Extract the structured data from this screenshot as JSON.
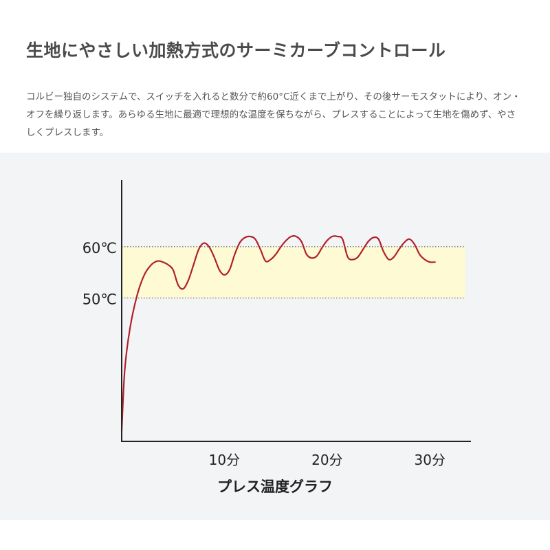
{
  "header": {
    "title": "生地にやさしい加熱方式のサーミカーブコントロール"
  },
  "description": {
    "text": "コルビー独自のシステムで、スイッチを入れると数分で約60°C近くまで上がり、その後サーモスタットにより、オン・オフを繰り返します。あらゆる生地に最適で理想的な温度を保ちながら、プレスすることによって生地を傷めず、やさしくプレスします。"
  },
  "chart_data": {
    "type": "line",
    "title": "プレス温度グラフ",
    "xlabel": "",
    "ylabel": "",
    "x_ticks": [
      {
        "value": 10,
        "label": "10分"
      },
      {
        "value": 20,
        "label": "20分"
      },
      {
        "value": 30,
        "label": "30分"
      }
    ],
    "y_ticks": [
      {
        "value": 60,
        "label": "60℃"
      },
      {
        "value": 50,
        "label": "50℃"
      }
    ],
    "xlim": [
      0,
      34
    ],
    "ylim": [
      22,
      73
    ],
    "band": {
      "from": 50,
      "to": 60,
      "color": "#fdfad4"
    },
    "grid": false,
    "series": [
      {
        "color": "#b0202a",
        "x": [
          0,
          0.3,
          0.8,
          1.5,
          2.2,
          2.9,
          3.5,
          4.0,
          4.5,
          5.0,
          5.5,
          6.0,
          6.5,
          7.0,
          7.5,
          8.0,
          8.5,
          9.0,
          9.5,
          10.0,
          10.5,
          11.0,
          11.5,
          12.0,
          12.5,
          13.0,
          13.5,
          14.0,
          14.5,
          15.0,
          15.5,
          16.0,
          16.5,
          17.0,
          17.5,
          18.0,
          18.5,
          19.0,
          19.5,
          20.0,
          20.5,
          21.0,
          21.5,
          22.0,
          22.5,
          23.0,
          23.5,
          24.0,
          24.5,
          25.0,
          25.5,
          26.0,
          26.5,
          27.0,
          27.5,
          28.0,
          28.5,
          29.0,
          29.5,
          30.0,
          30.5
        ],
        "y": [
          24,
          36,
          44,
          50.5,
          54.5,
          56.5,
          57.2,
          57.0,
          56.5,
          55.5,
          52.5,
          51.8,
          53.5,
          56.5,
          59.5,
          60.7,
          60.0,
          58.0,
          55.5,
          54.5,
          55.5,
          58.5,
          60.8,
          61.8,
          62.0,
          61.5,
          59.5,
          57.2,
          57.5,
          58.5,
          60.0,
          61.2,
          62.0,
          62.0,
          61.0,
          58.5,
          57.8,
          58.2,
          59.8,
          61.2,
          62.0,
          62.0,
          61.5,
          58.0,
          57.5,
          58.0,
          59.5,
          61.0,
          61.8,
          61.5,
          59.0,
          57.5,
          58.0,
          59.5,
          60.8,
          61.5,
          60.5,
          58.5,
          57.5,
          57.0,
          57.0
        ]
      }
    ]
  }
}
